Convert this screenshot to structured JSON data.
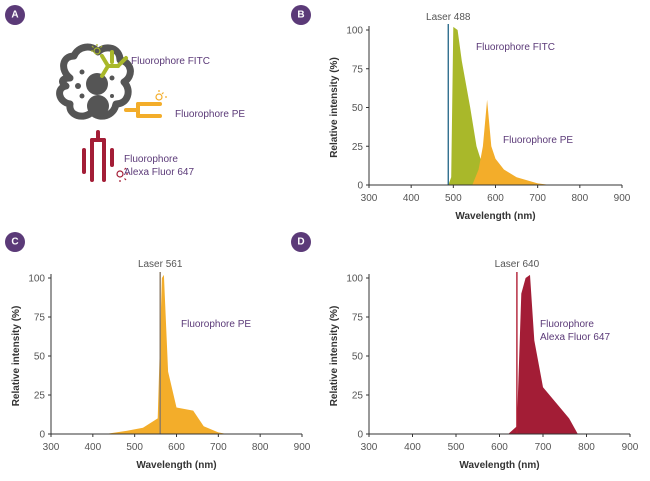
{
  "colors": {
    "badge": "#5b3a78",
    "fitc": "#a9b82a",
    "pe": "#f3ad2a",
    "af647": "#a31d36",
    "laser488": "#2e6f8e",
    "laser561": "#8a7a66",
    "laser640": "#b01f35",
    "cell": "#555555"
  },
  "panel_a": {
    "badge": "A",
    "fitc_label": "Fluorophore FITC",
    "pe_label": "Fluorophore PE",
    "af647_label_line1": "Fluorophore",
    "af647_label_line2": "Alexa Fluor 647"
  },
  "chart_data": [
    {
      "panel": "B",
      "type": "area",
      "xlabel": "Wavelength (nm)",
      "ylabel": "Relative intensity (%)",
      "xlim": [
        300,
        900
      ],
      "ylim": [
        0,
        100
      ],
      "xticks": [
        300,
        400,
        500,
        600,
        700,
        800,
        900
      ],
      "yticks": [
        0,
        25,
        50,
        75,
        100
      ],
      "laser": {
        "label": "Laser 488",
        "x": 488,
        "color_key": "laser488"
      },
      "series": [
        {
          "name": "Fluorophore FITC",
          "color_key": "fitc",
          "points": [
            [
              488,
              0
            ],
            [
              495,
              5
            ],
            [
              500,
              102
            ],
            [
              510,
              100
            ],
            [
              520,
              80
            ],
            [
              540,
              50
            ],
            [
              555,
              25
            ],
            [
              570,
              12
            ],
            [
              600,
              5
            ],
            [
              630,
              2
            ],
            [
              650,
              0
            ]
          ]
        },
        {
          "name": "Fluorophore PE",
          "color_key": "pe",
          "points": [
            [
              545,
              0
            ],
            [
              560,
              10
            ],
            [
              570,
              25
            ],
            [
              580,
              55
            ],
            [
              590,
              25
            ],
            [
              600,
              17
            ],
            [
              620,
              10
            ],
            [
              650,
              5
            ],
            [
              700,
              1
            ],
            [
              730,
              0
            ]
          ]
        }
      ],
      "annotations": [
        "Fluorophore FITC",
        "Fluorophore PE"
      ]
    },
    {
      "panel": "C",
      "type": "area",
      "xlabel": "Wavelength (nm)",
      "ylabel": "Relative intensity (%)",
      "xlim": [
        300,
        900
      ],
      "ylim": [
        0,
        100
      ],
      "xticks": [
        300,
        400,
        500,
        600,
        700,
        800,
        900
      ],
      "yticks": [
        0,
        25,
        50,
        75,
        100
      ],
      "laser": {
        "label": "Laser 561",
        "x": 561,
        "color_key": "laser561"
      },
      "series": [
        {
          "name": "Fluorophore PE",
          "color_key": "pe",
          "points": [
            [
              430,
              0
            ],
            [
              480,
              2
            ],
            [
              520,
              4
            ],
            [
              555,
              10
            ],
            [
              565,
              100
            ],
            [
              570,
              102
            ],
            [
              580,
              40
            ],
            [
              600,
              17
            ],
            [
              640,
              15
            ],
            [
              665,
              5
            ],
            [
              700,
              1
            ],
            [
              720,
              0
            ]
          ]
        }
      ],
      "annotations": [
        "Fluorophore PE"
      ]
    },
    {
      "panel": "D",
      "type": "area",
      "xlabel": "Wavelength (nm)",
      "ylabel": "Relative intensity (%)",
      "xlim": [
        300,
        900
      ],
      "ylim": [
        0,
        100
      ],
      "xticks": [
        300,
        400,
        500,
        600,
        700,
        800,
        900
      ],
      "yticks": [
        0,
        25,
        50,
        75,
        100
      ],
      "laser": {
        "label": "Laser 640",
        "x": 640,
        "color_key": "laser640"
      },
      "series": [
        {
          "name": "Fluorophore Alexa Fluor 647",
          "color_key": "af647",
          "points": [
            [
              620,
              0
            ],
            [
              640,
              5
            ],
            [
              650,
              90
            ],
            [
              660,
              100
            ],
            [
              670,
              102
            ],
            [
              680,
              60
            ],
            [
              700,
              30
            ],
            [
              730,
              20
            ],
            [
              760,
              10
            ],
            [
              780,
              0
            ]
          ]
        }
      ],
      "annotations": [
        "Fluorophore",
        "Alexa Fluor 647"
      ]
    }
  ]
}
